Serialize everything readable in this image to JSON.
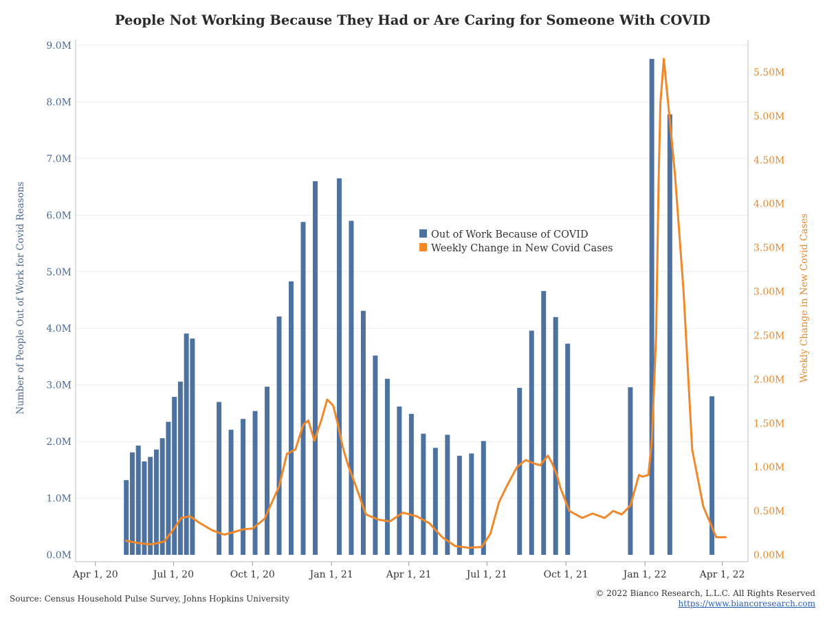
{
  "chart_data": {
    "type": "bar+line",
    "title": "People Not Working Because They Had or Are Caring for Someone With COVID",
    "ylabel_left": "Number of People Out of Work for Covid Reasons",
    "ylabel_right": "Weekly Change in New Covid Cases",
    "x_range": [
      "2020-03-09",
      "2022-05-01"
    ],
    "x_ticks": [
      {
        "date": "2020-04-01",
        "label": "Apr 1, 20"
      },
      {
        "date": "2020-07-01",
        "label": "Jul 1, 20"
      },
      {
        "date": "2020-10-01",
        "label": "Oct 1, 20"
      },
      {
        "date": "2021-01-01",
        "label": "Jan 1, 21"
      },
      {
        "date": "2021-04-01",
        "label": "Apr 1, 21"
      },
      {
        "date": "2021-07-01",
        "label": "Jul 1, 21"
      },
      {
        "date": "2021-10-01",
        "label": "Oct 1, 21"
      },
      {
        "date": "2022-01-01",
        "label": "Jan 1, 22"
      },
      {
        "date": "2022-04-01",
        "label": "Apr 1, 22"
      }
    ],
    "ylim_left": [
      0,
      9000000
    ],
    "yticks_left": [
      {
        "value": 0,
        "label": "0.0M"
      },
      {
        "value": 1000000,
        "label": "1.0M"
      },
      {
        "value": 2000000,
        "label": "2.0M"
      },
      {
        "value": 3000000,
        "label": "3.0M"
      },
      {
        "value": 4000000,
        "label": "4.0M"
      },
      {
        "value": 5000000,
        "label": "5.0M"
      },
      {
        "value": 6000000,
        "label": "6.0M"
      },
      {
        "value": 7000000,
        "label": "7.0M"
      },
      {
        "value": 8000000,
        "label": "8.0M"
      },
      {
        "value": 9000000,
        "label": "9.0M"
      }
    ],
    "ylim_right": [
      0,
      5750000
    ],
    "yticks_right": [
      {
        "value": 0,
        "label": "0.00M"
      },
      {
        "value": 500000,
        "label": "0.50M"
      },
      {
        "value": 1000000,
        "label": "1.00M"
      },
      {
        "value": 1500000,
        "label": "1.50M"
      },
      {
        "value": 2000000,
        "label": "2.00M"
      },
      {
        "value": 2500000,
        "label": "2.50M"
      },
      {
        "value": 3000000,
        "label": "3.00M"
      },
      {
        "value": 3500000,
        "label": "3.50M"
      },
      {
        "value": 4000000,
        "label": "4.00M"
      },
      {
        "value": 4500000,
        "label": "4.50M"
      },
      {
        "value": 5000000,
        "label": "5.00M"
      },
      {
        "value": 5500000,
        "label": "5.50M"
      }
    ],
    "grid": true,
    "legend_position": "center",
    "series": [
      {
        "name": "Out of Work Because of COVID",
        "type": "bar",
        "axis": "left",
        "color": "#4e72a0",
        "x": [
          "2020-05-07",
          "2020-05-14",
          "2020-05-21",
          "2020-05-28",
          "2020-06-04",
          "2020-06-11",
          "2020-06-18",
          "2020-06-25",
          "2020-07-02",
          "2020-07-09",
          "2020-07-16",
          "2020-07-23",
          "2020-08-23",
          "2020-09-06",
          "2020-09-20",
          "2020-10-04",
          "2020-10-18",
          "2020-11-01",
          "2020-11-15",
          "2020-11-29",
          "2020-12-13",
          "2021-01-10",
          "2021-01-24",
          "2021-02-07",
          "2021-02-21",
          "2021-03-07",
          "2021-03-21",
          "2021-04-04",
          "2021-04-18",
          "2021-05-02",
          "2021-05-16",
          "2021-05-30",
          "2021-06-13",
          "2021-06-27",
          "2021-08-08",
          "2021-08-22",
          "2021-09-05",
          "2021-09-19",
          "2021-10-03",
          "2021-12-15",
          "2022-01-09",
          "2022-01-30",
          "2022-03-20"
        ],
        "values": [
          1320000,
          1810000,
          1930000,
          1650000,
          1730000,
          1860000,
          2060000,
          2350000,
          2790000,
          3060000,
          3910000,
          3820000,
          2700000,
          2210000,
          2400000,
          2540000,
          2970000,
          4210000,
          4830000,
          5880000,
          6600000,
          6650000,
          5900000,
          4310000,
          3520000,
          3110000,
          2620000,
          2490000,
          2140000,
          1890000,
          2120000,
          1750000,
          1790000,
          2010000,
          2950000,
          3960000,
          4660000,
          4200000,
          3730000,
          2960000,
          8760000,
          7780000,
          2800000
        ]
      },
      {
        "name": "Weekly Change in New Covid Cases",
        "type": "line",
        "axis": "right",
        "color": "#f0882a",
        "x": [
          "2020-05-07",
          "2020-05-20",
          "2020-06-05",
          "2020-06-20",
          "2020-07-01",
          "2020-07-10",
          "2020-07-20",
          "2020-08-01",
          "2020-08-15",
          "2020-08-29",
          "2020-09-06",
          "2020-09-20",
          "2020-10-01",
          "2020-10-15",
          "2020-11-01",
          "2020-11-10",
          "2020-11-20",
          "2020-11-29",
          "2020-12-05",
          "2020-12-12",
          "2020-12-20",
          "2020-12-27",
          "2021-01-03",
          "2021-01-08",
          "2021-01-14",
          "2021-01-20",
          "2021-01-28",
          "2021-02-10",
          "2021-02-25",
          "2021-03-10",
          "2021-03-25",
          "2021-04-10",
          "2021-04-25",
          "2021-05-10",
          "2021-05-25",
          "2021-06-10",
          "2021-06-25",
          "2021-07-05",
          "2021-07-15",
          "2021-07-25",
          "2021-08-05",
          "2021-08-15",
          "2021-08-25",
          "2021-09-01",
          "2021-09-05",
          "2021-09-10",
          "2021-09-15",
          "2021-09-20",
          "2021-09-25",
          "2021-10-05",
          "2021-10-20",
          "2021-11-01",
          "2021-11-15",
          "2021-11-25",
          "2021-12-05",
          "2021-12-15",
          "2021-12-25",
          "2021-12-29",
          "2022-01-05",
          "2022-01-09",
          "2022-01-14",
          "2022-01-17",
          "2022-01-19",
          "2022-01-23",
          "2022-01-26",
          "2022-01-30",
          "2022-02-05",
          "2022-02-15",
          "2022-02-25",
          "2022-03-10",
          "2022-03-25",
          "2022-04-05"
        ],
        "values": [
          160000,
          135000,
          120000,
          150000,
          290000,
          420000,
          440000,
          360000,
          280000,
          230000,
          250000,
          290000,
          300000,
          410000,
          780000,
          1150000,
          1200000,
          1480000,
          1530000,
          1300000,
          1530000,
          1770000,
          1700000,
          1500000,
          1230000,
          1030000,
          820000,
          460000,
          400000,
          380000,
          480000,
          440000,
          360000,
          200000,
          100000,
          80000,
          90000,
          240000,
          600000,
          800000,
          1000000,
          1080000,
          1040000,
          1020000,
          1070000,
          1130000,
          1040000,
          920000,
          750000,
          500000,
          420000,
          470000,
          420000,
          500000,
          460000,
          560000,
          910000,
          890000,
          910000,
          1300000,
          2500000,
          4300000,
          5150000,
          5650000,
          5350000,
          4950000,
          4330000,
          3000000,
          1200000,
          550000,
          200000,
          200000
        ]
      }
    ]
  },
  "footer": {
    "source": "Source: Census Household Pulse Survey, Johns Hopkins University",
    "copyright": "© 2022 Bianco Research, L.L.C. All Rights Reserved",
    "url": "https://www.biancoresearch.com"
  }
}
